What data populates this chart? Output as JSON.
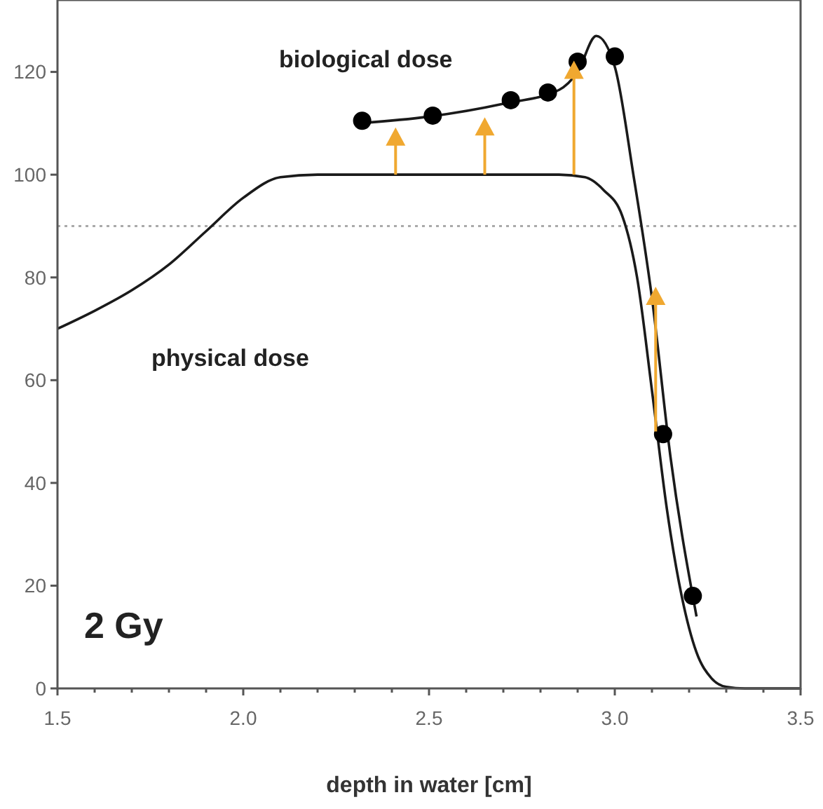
{
  "chart_data": {
    "type": "line",
    "xlabel": "depth in water [cm]",
    "xlim": [
      1.5,
      3.5
    ],
    "ylim": [
      0,
      134
    ],
    "xticks": [
      {
        "value": 1.5,
        "label": "1.5"
      },
      {
        "value": 1.6,
        "label": null
      },
      {
        "value": 1.7,
        "label": null
      },
      {
        "value": 1.8,
        "label": null
      },
      {
        "value": 1.9,
        "label": null
      },
      {
        "value": 2,
        "label": "2.0"
      },
      {
        "value": 2.1,
        "label": null
      },
      {
        "value": 2.2,
        "label": null
      },
      {
        "value": 2.3,
        "label": null
      },
      {
        "value": 2.4,
        "label": null
      },
      {
        "value": 2.5,
        "label": "2.5"
      },
      {
        "value": 2.6,
        "label": null
      },
      {
        "value": 2.7,
        "label": null
      },
      {
        "value": 2.8,
        "label": null
      },
      {
        "value": 2.9,
        "label": null
      },
      {
        "value": 3,
        "label": "3.0"
      },
      {
        "value": 3.1,
        "label": null
      },
      {
        "value": 3.2,
        "label": null
      },
      {
        "value": 3.3,
        "label": null
      },
      {
        "value": 3.4,
        "label": null
      },
      {
        "value": 3.5,
        "label": "3.5"
      }
    ],
    "yticks": [
      0,
      20,
      40,
      60,
      80,
      100,
      120
    ],
    "grid": false,
    "series": [
      {
        "color": "#1a1a1a",
        "marker": "none",
        "x": [
          1.5,
          1.6,
          1.7,
          1.8,
          1.9,
          2.0,
          2.1,
          2.2,
          2.5,
          2.85,
          2.92,
          2.97,
          3.02,
          3.06,
          3.1,
          3.14,
          3.18,
          3.22,
          3.26,
          3.3,
          3.35,
          3.5
        ],
        "values": [
          70,
          73.5,
          77.5,
          82.5,
          89,
          95.5,
          99.5,
          100,
          100,
          100,
          99.5,
          97,
          92,
          80,
          58,
          35,
          18,
          7,
          2,
          0.3,
          0,
          0
        ]
      },
      {
        "color": "#1a1a1a",
        "marker": "none",
        "x": [
          2.31,
          2.5,
          2.7,
          2.85,
          2.9,
          2.95,
          3.0,
          3.05,
          3.1,
          3.15,
          3.22
        ],
        "values": [
          110,
          111.3,
          113.8,
          116.5,
          120,
          127,
          121,
          100,
          76,
          45,
          14
        ]
      },
      {
        "type": "scatter",
        "color": "#000000",
        "marker": "circle",
        "x": [
          2.32,
          2.51,
          2.72,
          2.82,
          2.9,
          3.0,
          3.13,
          3.21
        ],
        "values": [
          110.5,
          111.5,
          114.5,
          116,
          122,
          123,
          49.5,
          18
        ]
      },
      {
        "type": "scatter",
        "color": "#f0a830",
        "marker": "triangle",
        "x": [
          2.41,
          2.65,
          2.89,
          3.11
        ],
        "values": [
          107,
          109,
          120,
          76
        ],
        "errors": [
          [
            100,
            107
          ],
          [
            100,
            109
          ],
          [
            100,
            120
          ],
          [
            50,
            76
          ]
        ]
      }
    ],
    "ref_lines": [
      {
        "axis": "y",
        "value": 90,
        "color": "#aaaaaa",
        "line_style": "dotted"
      }
    ],
    "annotations": [
      "biological dose",
      "physical dose",
      "2 Gy"
    ]
  }
}
